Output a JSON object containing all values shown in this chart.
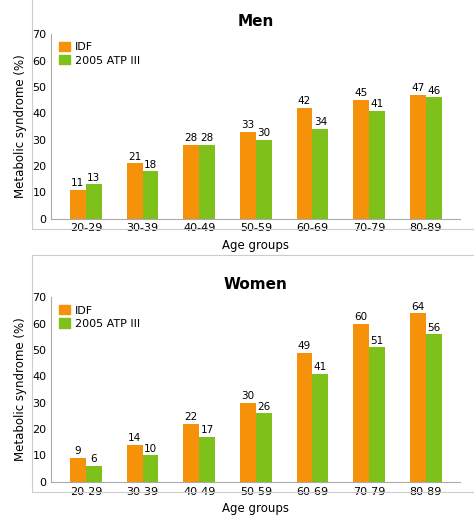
{
  "age_groups": [
    "20-29",
    "30-39",
    "40-49",
    "50-59",
    "60-69",
    "70-79",
    "80-89"
  ],
  "men": {
    "title": "Men",
    "idf": [
      11,
      21,
      28,
      33,
      42,
      45,
      47
    ],
    "atp": [
      13,
      18,
      28,
      30,
      34,
      41,
      46
    ]
  },
  "women": {
    "title": "Women",
    "idf": [
      9,
      14,
      22,
      30,
      49,
      60,
      64
    ],
    "atp": [
      6,
      10,
      17,
      26,
      41,
      51,
      56
    ]
  },
  "idf_color": "#F5920A",
  "atp_color": "#7DC11A",
  "ylabel": "Metabolic syndrome (%)",
  "xlabel": "Age groups",
  "ylim": [
    0,
    70
  ],
  "yticks": [
    0,
    10,
    20,
    30,
    40,
    50,
    60,
    70
  ],
  "legend_idf": "IDF",
  "legend_atp": "2005 ATP III",
  "bar_width": 0.28,
  "title_fontsize": 11,
  "label_fontsize": 8.5,
  "tick_fontsize": 8,
  "annot_fontsize": 7.5,
  "legend_fontsize": 8,
  "panel_facecolor": "#f8f8f8",
  "border_color": "#cccccc"
}
